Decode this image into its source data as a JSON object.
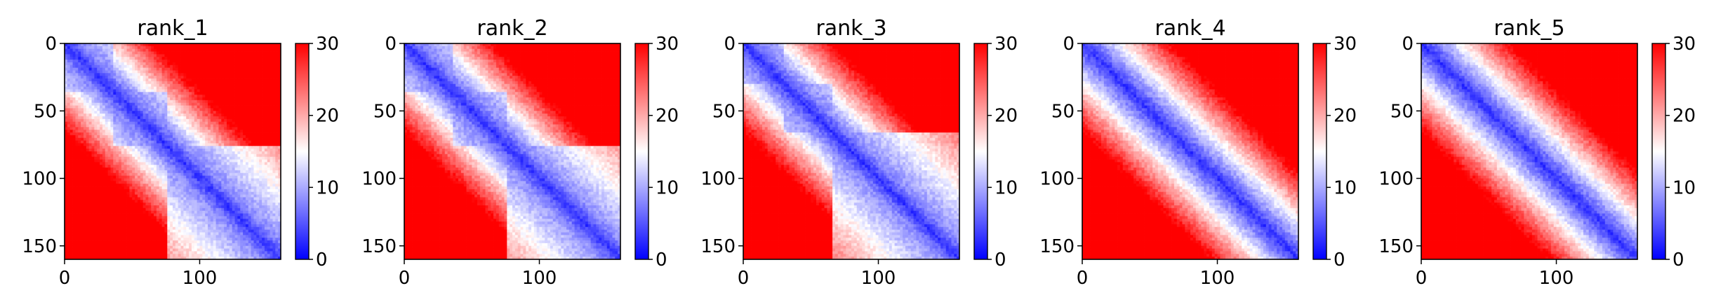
{
  "chart_data": [
    {
      "type": "heatmap",
      "title": "rank_1",
      "x_ticks": [
        "0",
        "100"
      ],
      "y_ticks": [
        "0",
        "50",
        "100",
        "150"
      ],
      "xlim": [
        0,
        160
      ],
      "ylim": [
        160,
        0
      ],
      "colorbar": {
        "colormap": "bwr",
        "ticks": [
          "0",
          "10",
          "20",
          "30"
        ],
        "range": [
          0,
          30
        ]
      },
      "block_boundaries": [
        0,
        35,
        75,
        160
      ],
      "grid": false
    },
    {
      "type": "heatmap",
      "title": "rank_2",
      "x_ticks": [
        "0",
        "100"
      ],
      "y_ticks": [
        "0",
        "50",
        "100",
        "150"
      ],
      "xlim": [
        0,
        160
      ],
      "ylim": [
        160,
        0
      ],
      "colorbar": {
        "colormap": "bwr",
        "ticks": [
          "0",
          "10",
          "20",
          "30"
        ],
        "range": [
          0,
          30
        ]
      },
      "block_boundaries": [
        0,
        35,
        75,
        160
      ],
      "grid": false
    },
    {
      "type": "heatmap",
      "title": "rank_3",
      "x_ticks": [
        "0",
        "100"
      ],
      "y_ticks": [
        "0",
        "50",
        "100",
        "150"
      ],
      "xlim": [
        0,
        160
      ],
      "ylim": [
        160,
        0
      ],
      "colorbar": {
        "colormap": "bwr",
        "ticks": [
          "0",
          "10",
          "20",
          "30"
        ],
        "range": [
          0,
          30
        ]
      },
      "block_boundaries": [
        0,
        30,
        65,
        160
      ],
      "grid": false
    },
    {
      "type": "heatmap",
      "title": "rank_4",
      "x_ticks": [
        "0",
        "100"
      ],
      "y_ticks": [
        "0",
        "50",
        "100",
        "150"
      ],
      "xlim": [
        0,
        160
      ],
      "ylim": [
        160,
        0
      ],
      "colorbar": {
        "colormap": "bwr",
        "ticks": [
          "0",
          "10",
          "20",
          "30"
        ],
        "range": [
          0,
          30
        ]
      },
      "block_boundaries": [
        0,
        160
      ],
      "grid": false
    },
    {
      "type": "heatmap",
      "title": "rank_5",
      "x_ticks": [
        "0",
        "100"
      ],
      "y_ticks": [
        "0",
        "50",
        "100",
        "150"
      ],
      "xlim": [
        0,
        160
      ],
      "ylim": [
        160,
        0
      ],
      "colorbar": {
        "colormap": "bwr",
        "ticks": [
          "0",
          "10",
          "20",
          "30"
        ],
        "range": [
          0,
          30
        ]
      },
      "block_boundaries": [
        0,
        160
      ],
      "grid": false
    }
  ],
  "colors": {
    "low": "#0000ff",
    "mid": "#ffffff",
    "high": "#ff0000",
    "axis": "#000000"
  }
}
